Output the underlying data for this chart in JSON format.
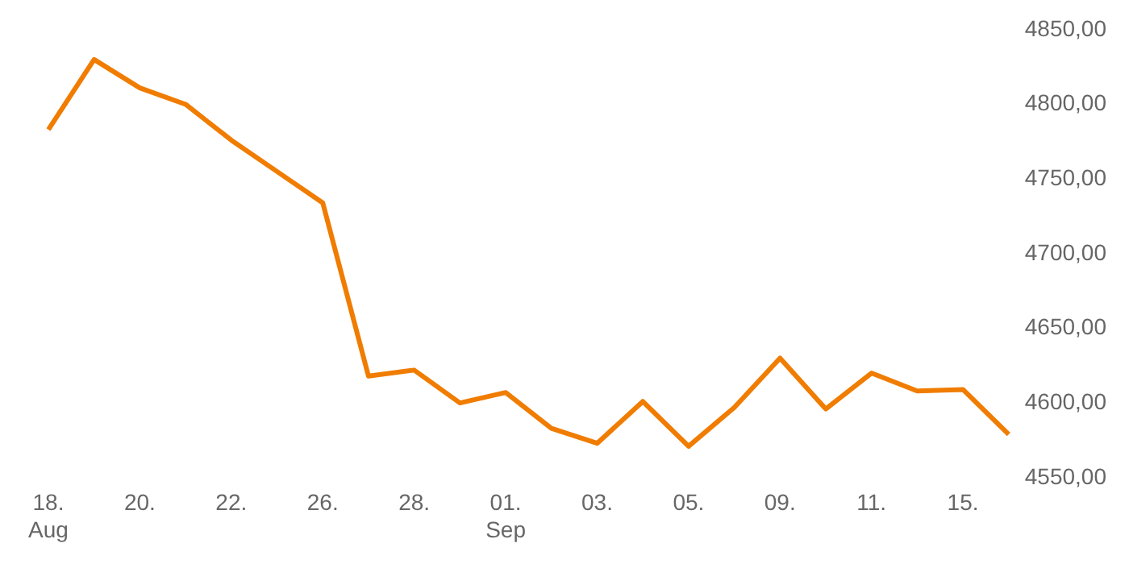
{
  "chart_data": {
    "type": "line",
    "categories": [
      "18.\nAug",
      null,
      "20.",
      null,
      "22.",
      null,
      "26.",
      null,
      "28.",
      null,
      "01.\nSep",
      null,
      "03.",
      null,
      "05.",
      null,
      "09.",
      null,
      "11.",
      null,
      "15.",
      null
    ],
    "series": [
      {
        "color": "#f07c00",
        "values": [
          4783,
          4830,
          4811,
          4800,
          4776,
          4755,
          4734,
          4618,
          4622,
          4600,
          4607,
          4583,
          4573,
          4601,
          4571,
          4597,
          4630,
          4596,
          4620,
          4608,
          4609,
          4579
        ]
      }
    ],
    "ylim": [
      4550,
      4850
    ],
    "yticks": [
      {
        "value": 4550,
        "label": "4550,00"
      },
      {
        "value": 4600,
        "label": "4600,00"
      },
      {
        "value": 4650,
        "label": "4650,00"
      },
      {
        "value": 4700,
        "label": "4700,00"
      },
      {
        "value": 4750,
        "label": "4750,00"
      },
      {
        "value": 4800,
        "label": "4800,00"
      },
      {
        "value": 4850,
        "label": "4850,00"
      }
    ],
    "grid": false,
    "legend": false,
    "marker": "none",
    "line_style": "solid"
  }
}
